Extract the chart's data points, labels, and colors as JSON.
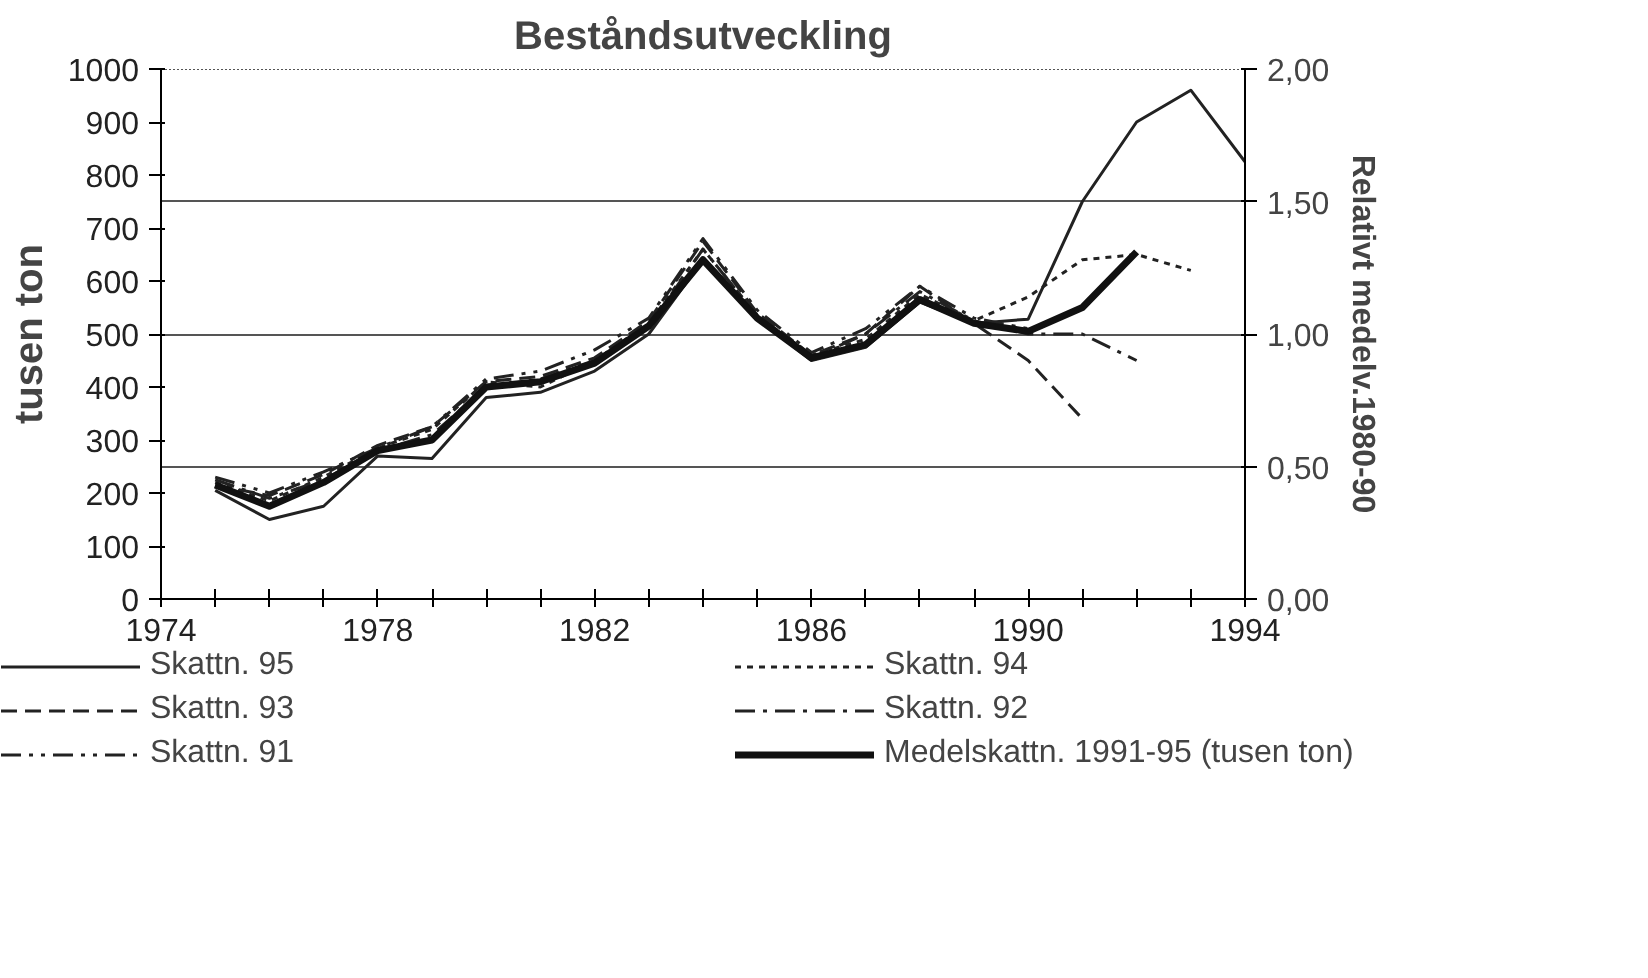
{
  "chart_data": {
    "type": "line",
    "title": "Beståndsutveckling",
    "ylabel": "tusen ton",
    "y2label": "Relativt medelv.1980-90",
    "xlim": [
      1974,
      1994
    ],
    "ylim": [
      0,
      1000
    ],
    "y2lim": [
      0,
      2
    ],
    "xticks": [
      1974,
      {
        "value": 1975,
        "label": null
      },
      {
        "value": 1976,
        "label": null
      },
      {
        "value": 1977,
        "label": null
      },
      1978,
      {
        "value": 1979,
        "label": null
      },
      {
        "value": 1980,
        "label": null
      },
      {
        "value": 1981,
        "label": null
      },
      1982,
      {
        "value": 1983,
        "label": null
      },
      {
        "value": 1984,
        "label": null
      },
      {
        "value": 1985,
        "label": null
      },
      1986,
      {
        "value": 1987,
        "label": null
      },
      {
        "value": 1988,
        "label": null
      },
      {
        "value": 1989,
        "label": null
      },
      1990,
      {
        "value": 1991,
        "label": null
      },
      {
        "value": 1992,
        "label": null
      },
      {
        "value": 1993,
        "label": null
      },
      1994
    ],
    "yticks": [
      0,
      100,
      200,
      300,
      400,
      500,
      600,
      700,
      800,
      900,
      1000
    ],
    "y2ticks": [
      {
        "value": 0,
        "label": "0,00"
      },
      {
        "value": 0.5,
        "label": "0,50"
      },
      {
        "value": 1,
        "label": "1,00"
      },
      {
        "value": 1.5,
        "label": "1,50"
      },
      {
        "value": 2,
        "label": "2,00"
      }
    ],
    "grid": "y2",
    "legend": "bottom",
    "marker": "none",
    "series": [
      {
        "name": "Skattn. 95",
        "color": "#222222",
        "line_style": "solid",
        "x": [
          1975,
          1976,
          1977,
          1978,
          1979,
          1980,
          1981,
          1982,
          1983,
          1984,
          1985,
          1986,
          1987,
          1988,
          1989,
          1990,
          1991,
          1992,
          1993,
          1994
        ],
        "values": [
          205,
          150,
          175,
          270,
          265,
          380,
          390,
          430,
          500,
          640,
          530,
          450,
          475,
          560,
          520,
          528,
          750,
          900,
          960,
          825
        ]
      },
      {
        "name": "Skattn. 94",
        "color": "#222222",
        "line_style": "dotted",
        "x": [
          1975,
          1976,
          1977,
          1978,
          1979,
          1980,
          1981,
          1982,
          1983,
          1984,
          1985,
          1986,
          1987,
          1988,
          1989,
          1990,
          1991,
          1992,
          1993
        ],
        "values": [
          220,
          185,
          230,
          285,
          320,
          410,
          400,
          450,
          520,
          660,
          535,
          460,
          490,
          575,
          525,
          570,
          640,
          650,
          620
        ]
      },
      {
        "name": "Skattn. 93",
        "color": "#222222",
        "line_style": "dashed",
        "x": [
          1975,
          1976,
          1977,
          1978,
          1979,
          1980,
          1981,
          1982,
          1983,
          1984,
          1985,
          1986,
          1987,
          1988,
          1989,
          1990,
          1991
        ],
        "values": [
          215,
          195,
          235,
          290,
          325,
          410,
          420,
          455,
          525,
          675,
          540,
          460,
          500,
          590,
          520,
          450,
          340
        ]
      },
      {
        "name": "Skattn. 92",
        "color": "#222222",
        "line_style": "dashdot",
        "x": [
          1975,
          1976,
          1977,
          1978,
          1979,
          1980,
          1981,
          1982,
          1983,
          1984,
          1985,
          1986,
          1987,
          1988,
          1989,
          1990,
          1991,
          1992
        ],
        "values": [
          225,
          190,
          225,
          280,
          310,
          400,
          415,
          450,
          515,
          660,
          535,
          455,
          500,
          580,
          525,
          500,
          500,
          450
        ]
      },
      {
        "name": "Skattn. 91",
        "color": "#222222",
        "line_style": "dashdotdot",
        "x": [
          1975,
          1976,
          1977,
          1978,
          1979,
          1980,
          1981,
          1982,
          1983,
          1984,
          1985,
          1986,
          1987,
          1988,
          1989,
          1990
        ],
        "values": [
          230,
          200,
          240,
          285,
          325,
          415,
          430,
          470,
          530,
          680,
          545,
          465,
          510,
          590,
          530,
          510
        ]
      },
      {
        "name": "Medelskattn. 1991-95 (tusen ton)",
        "color": "#111111",
        "line_style": "solid",
        "x": [
          1975,
          1976,
          1977,
          1978,
          1979,
          1980,
          1981,
          1982,
          1983,
          1984,
          1985,
          1986,
          1987,
          1988,
          1989,
          1990,
          1991,
          1992
        ],
        "values": [
          215,
          175,
          220,
          280,
          300,
          400,
          410,
          445,
          515,
          640,
          530,
          455,
          480,
          565,
          520,
          505,
          550,
          655
        ]
      }
    ]
  }
}
